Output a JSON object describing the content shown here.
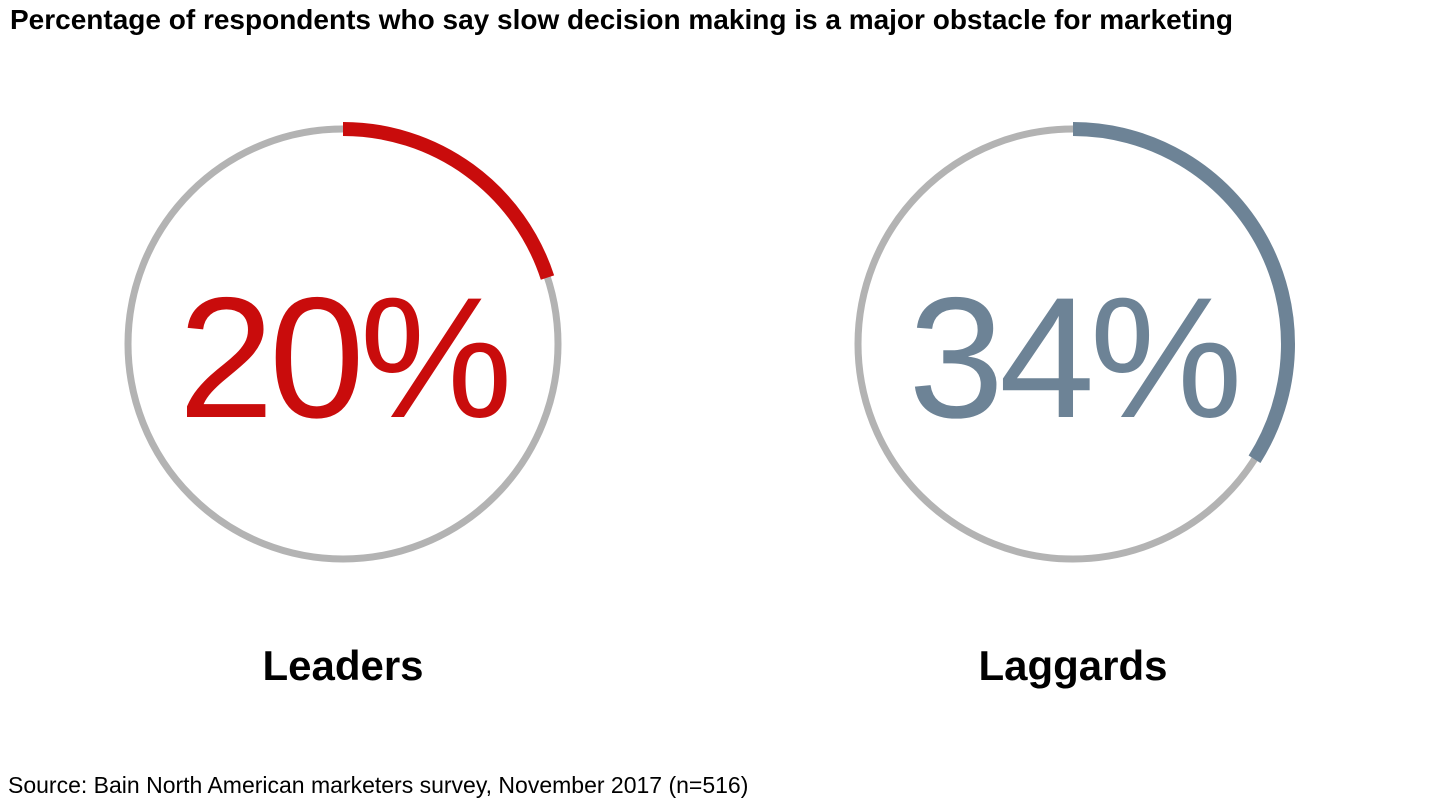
{
  "title": "Percentage of respondents who say slow decision making is a major obstacle for marketing",
  "source": "Source: Bain North American marketers survey, November 2017 (n=516)",
  "chart_data": {
    "type": "pie",
    "subtype": "donut-gauge",
    "title": "Percentage of respondents who say slow decision making is a major obstacle for marketing",
    "max": 100,
    "start_angle_deg": 0,
    "direction": "clockwise",
    "ring_color": "#b3b3b3",
    "ring_stroke_width": 7,
    "arc_stroke_width": 14,
    "charts": [
      {
        "label": "Leaders",
        "value": 20,
        "display": "20%",
        "color": "#c90c0c"
      },
      {
        "label": "Laggards",
        "value": 34,
        "display": "34%",
        "color": "#6d8396"
      }
    ]
  }
}
